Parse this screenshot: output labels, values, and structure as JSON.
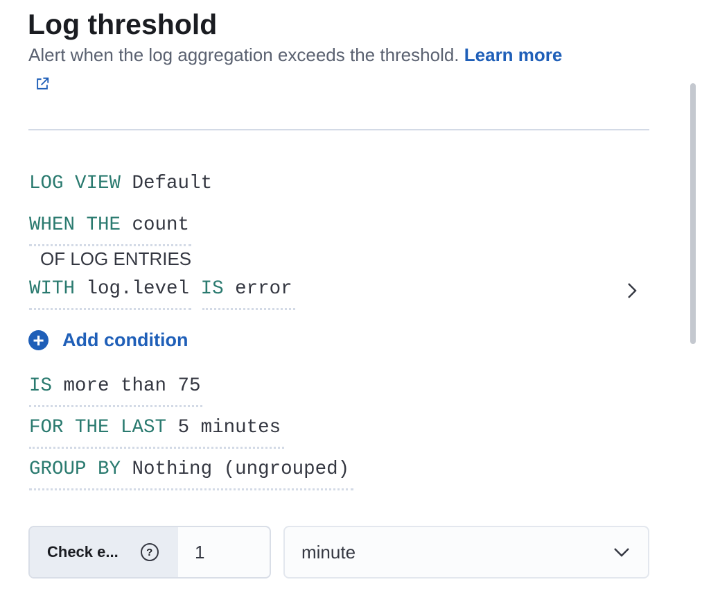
{
  "header": {
    "title": "Log threshold",
    "description": "Alert when the log aggregation exceeds the threshold.",
    "learn_more": "Learn more",
    "external_icon": "external-link-icon"
  },
  "expression": {
    "log_view": {
      "keyword": "LOG VIEW",
      "value": "Default"
    },
    "when": {
      "keyword": "WHEN THE",
      "value": "count"
    },
    "of_entries": "OF LOG ENTRIES",
    "with": {
      "keyword": "WITH",
      "field": "log.level",
      "operator": "IS",
      "value": "error"
    },
    "add_condition": "Add condition",
    "is": {
      "keyword": "IS",
      "value": "more than 75"
    },
    "for_last": {
      "keyword": "FOR THE LAST",
      "value": "5 minutes"
    },
    "group_by": {
      "keyword": "GROUP BY",
      "value": "Nothing (ungrouped)"
    }
  },
  "check_every": {
    "label": "Check e...",
    "value": "1",
    "unit": "minute"
  },
  "colors": {
    "keyword": "#2a7a6f",
    "link": "#1f5fb8"
  }
}
